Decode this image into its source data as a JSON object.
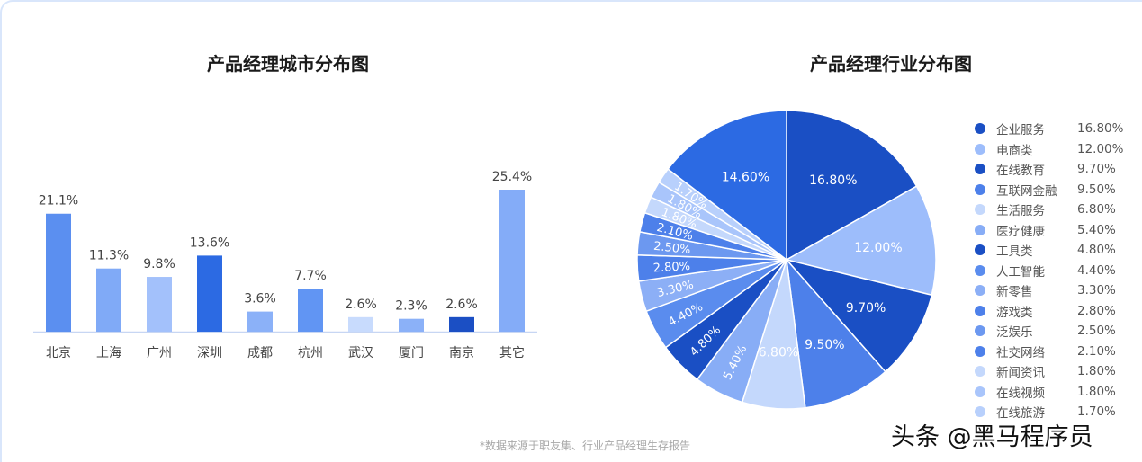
{
  "footnote": "*数据来源于职友集、行业产品经理生存报告",
  "watermark": "头条 @黑马程序员",
  "chart_data": [
    {
      "type": "bar",
      "title": "产品经理城市分布图",
      "categories": [
        "北京",
        "上海",
        "广州",
        "深圳",
        "成都",
        "杭州",
        "武汉",
        "厦门",
        "南京",
        "其它"
      ],
      "values": [
        21.1,
        11.3,
        9.8,
        13.6,
        3.6,
        7.7,
        2.6,
        2.3,
        2.6,
        25.4
      ],
      "labels": [
        "21.1%",
        "11.3%",
        "9.8%",
        "13.6%",
        "3.6%",
        "7.7%",
        "2.6%",
        "2.3%",
        "2.6%",
        "25.4%"
      ],
      "colors": [
        "#5b8ff0",
        "#80aaf7",
        "#a3c1fb",
        "#2c6ae3",
        "#8bb1f8",
        "#6195f3",
        "#c8dbfd",
        "#8bb1f8",
        "#1b4fc4",
        "#84acf8"
      ],
      "ylim": [
        0,
        25.4
      ],
      "grid": false
    },
    {
      "type": "pie",
      "title": "产品经理行业分布图",
      "legend": "right",
      "slices": [
        {
          "name": "企业服务",
          "value": 16.8,
          "label": "16.80%",
          "color": "#1a4fc4"
        },
        {
          "name": "电商类",
          "value": 12.0,
          "label": "12.00%",
          "color": "#9dbdfb"
        },
        {
          "name": "在线教育",
          "value": 9.7,
          "label": "9.70%",
          "color": "#1a4fc4"
        },
        {
          "name": "互联网金融",
          "value": 9.5,
          "label": "9.50%",
          "color": "#4d80ea"
        },
        {
          "name": "生活服务",
          "value": 6.8,
          "label": "6.80%",
          "color": "#c4d8fc"
        },
        {
          "name": "医疗健康",
          "value": 5.4,
          "label": "5.40%",
          "color": "#88adf6"
        },
        {
          "name": "工具类",
          "value": 4.8,
          "label": "4.80%",
          "color": "#1a4fc4"
        },
        {
          "name": "人工智能",
          "value": 4.4,
          "label": "4.40%",
          "color": "#5a8cee"
        },
        {
          "name": "新零售",
          "value": 3.3,
          "label": "3.30%",
          "color": "#8caff6"
        },
        {
          "name": "游戏类",
          "value": 2.8,
          "label": "2.80%",
          "color": "#4d80ea"
        },
        {
          "name": "泛娱乐",
          "value": 2.5,
          "label": "2.50%",
          "color": "#6c98f0"
        },
        {
          "name": "社交网络",
          "value": 2.1,
          "label": "2.10%",
          "color": "#4d80ea"
        },
        {
          "name": "新闻资讯",
          "value": 1.8,
          "label": "1.80%",
          "color": "#c4d8fc"
        },
        {
          "name": "在线视频",
          "value": 1.8,
          "label": "1.80%",
          "color": "#a9c5fb"
        },
        {
          "name": "在线旅游",
          "value": 1.7,
          "label": "1.70%",
          "color": "#b8d0fc"
        },
        {
          "name": "",
          "value": 14.6,
          "label": "14.60%",
          "color": "#2c6ae3"
        }
      ]
    }
  ]
}
